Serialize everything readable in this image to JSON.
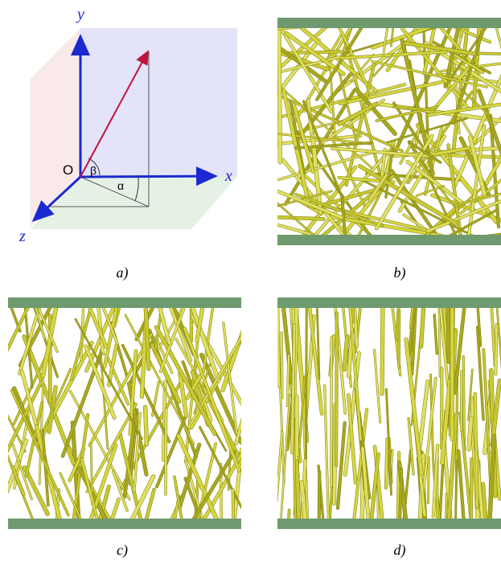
{
  "diagram": {
    "axes": {
      "y": "y",
      "x": "x",
      "z": "z",
      "origin": "O"
    },
    "angles": {
      "beta": "β",
      "alpha": "α"
    },
    "captions": [
      "a)",
      "b)",
      "c)",
      "d)"
    ]
  }
}
